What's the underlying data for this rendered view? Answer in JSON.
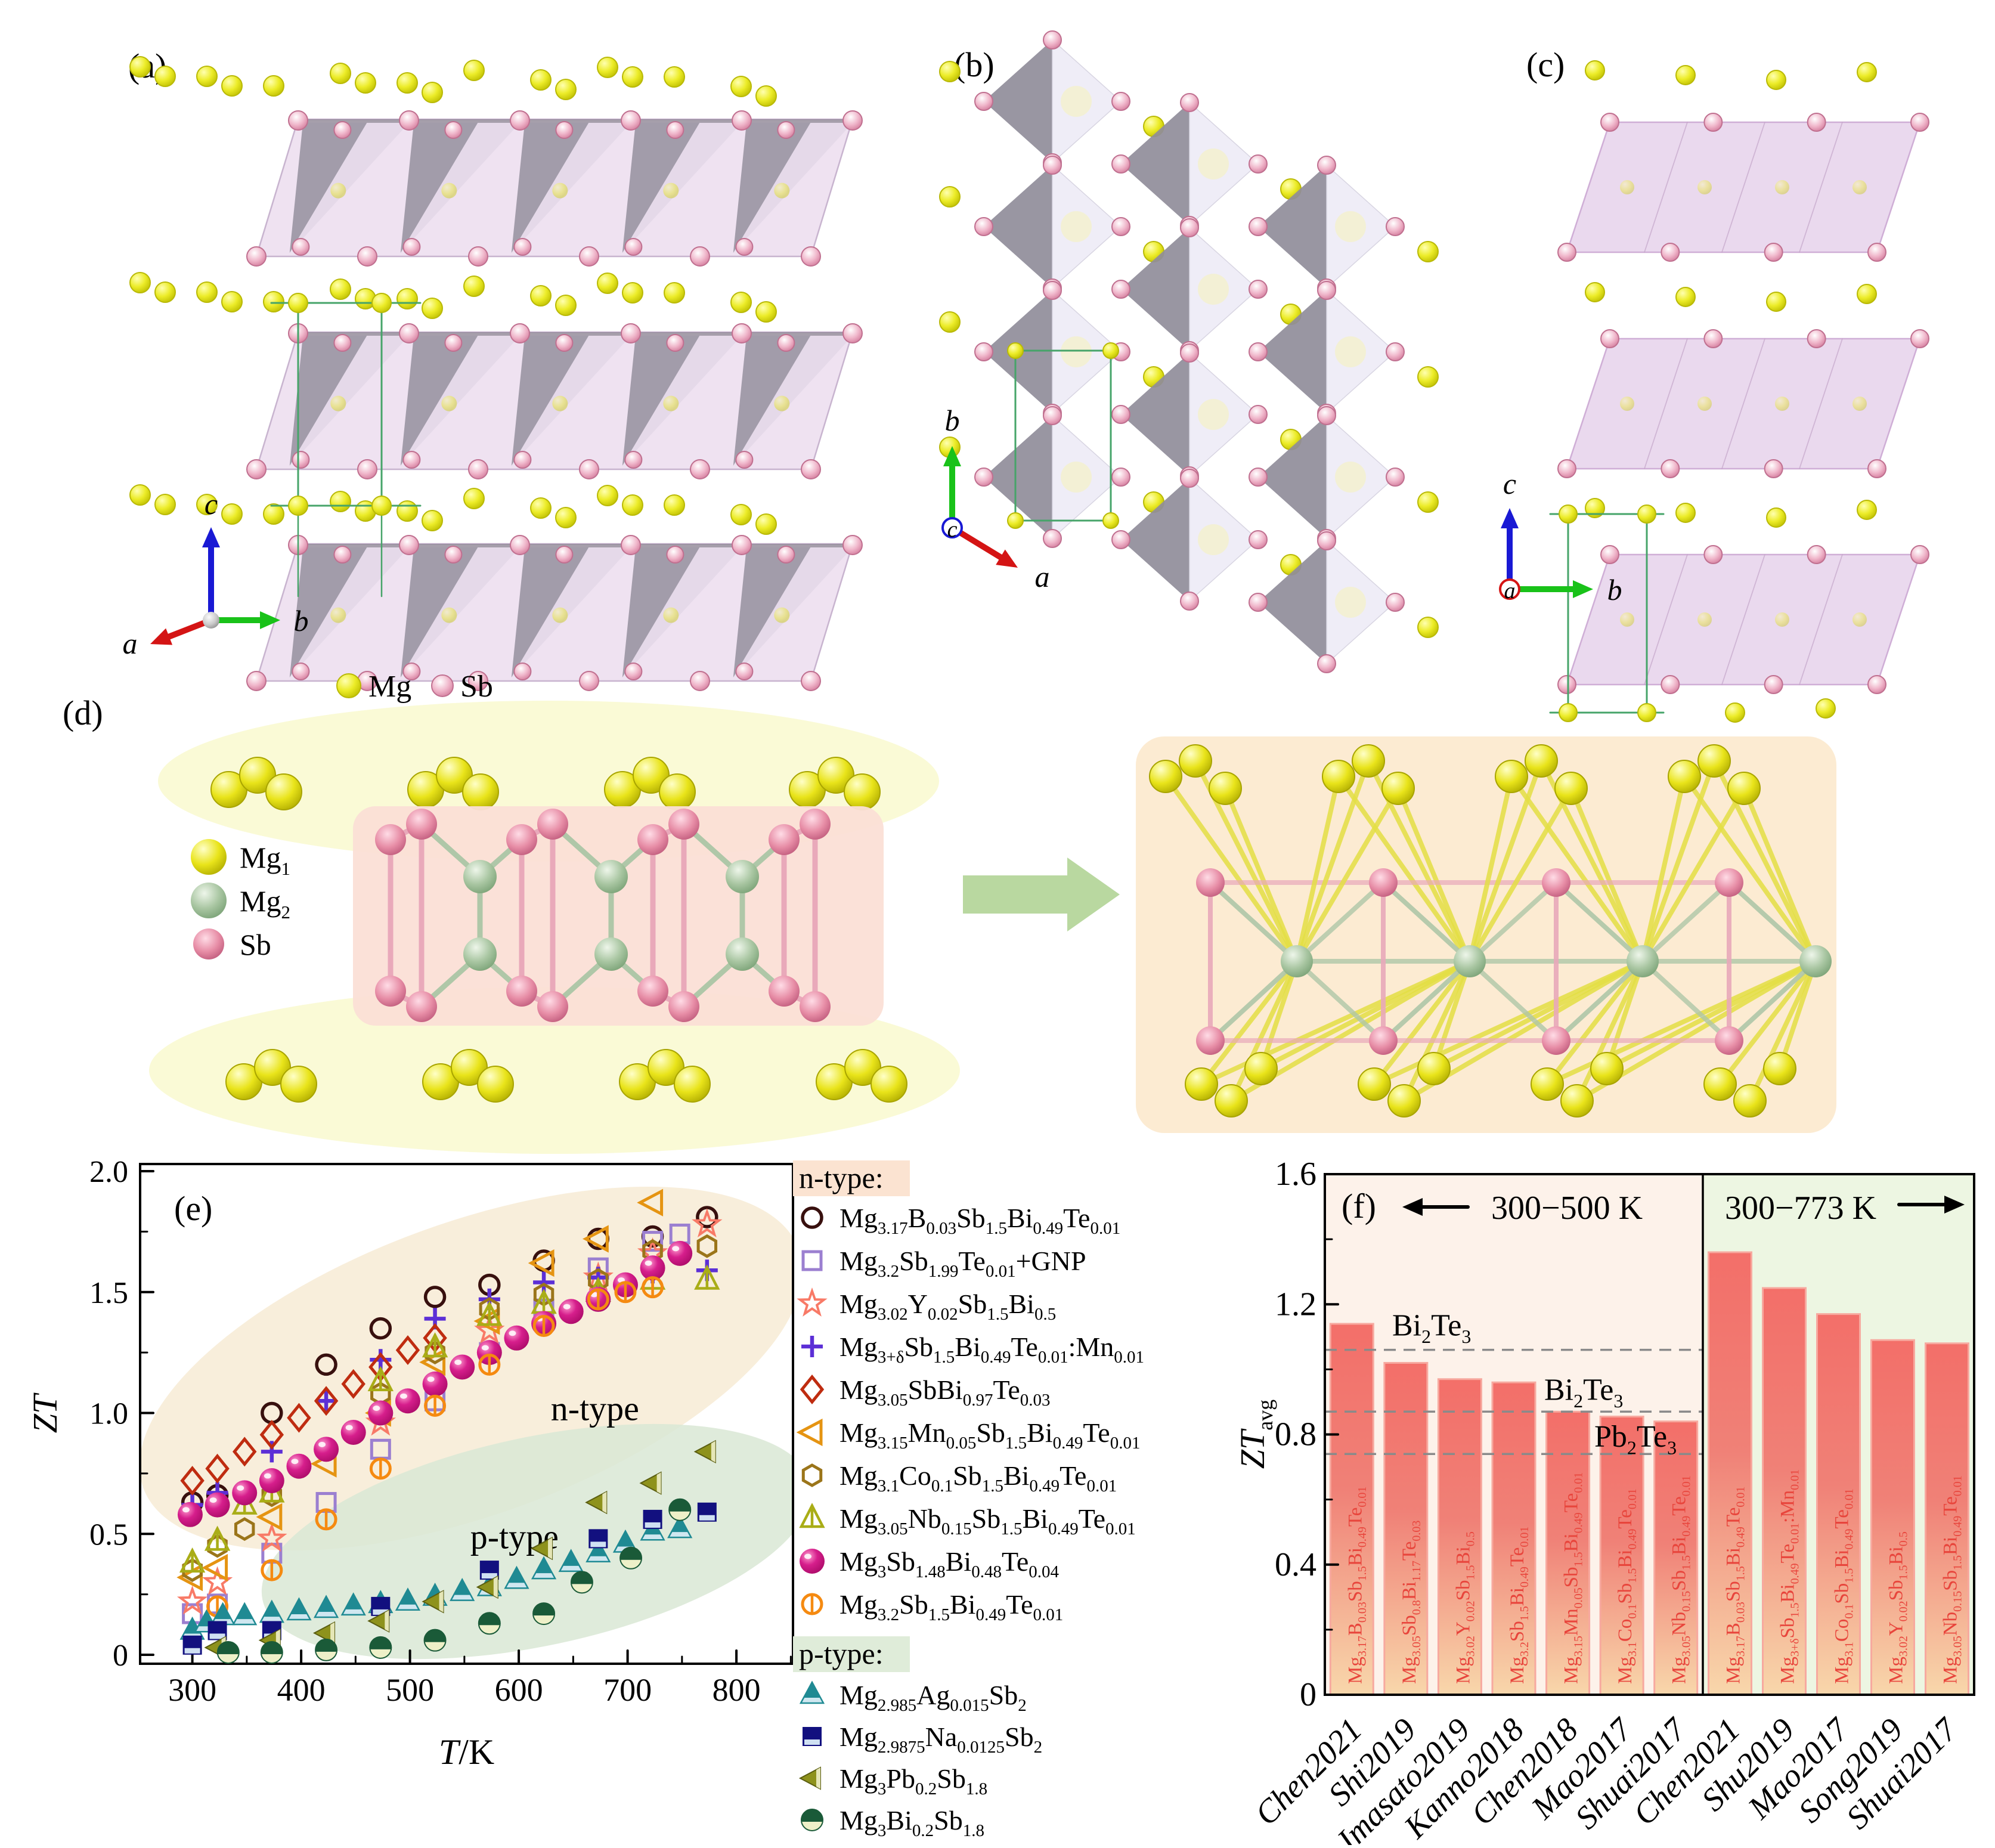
{
  "figure": {
    "panel_labels": {
      "a": "(a)",
      "b": "(b)",
      "c": "(c)",
      "d": "(d)",
      "e": "(e)",
      "f": "(f)"
    },
    "crystal_legend": {
      "mg": "Mg",
      "sb": "Sb"
    },
    "axis_triads": {
      "a": {
        "up": "c",
        "left": "a",
        "right": "b"
      },
      "b": {
        "up": "b",
        "diag": "a",
        "into_page": "c"
      },
      "c": {
        "up": "c",
        "right": "b",
        "into_page": "a"
      }
    },
    "d_legend": [
      {
        "label": "Mg_{1}",
        "color": "#e6e013"
      },
      {
        "label": "Mg_{2}",
        "color": "#a8c4a0"
      },
      {
        "label": "Sb",
        "color": "#e08ba4"
      }
    ],
    "palette": {
      "mg_yellow": "#ecec28",
      "sb_pink": "#eba6bd",
      "mg2_green": "#a9c6a2",
      "slab_pink": "#efe2f1",
      "slab_gray": "#8e8b98",
      "cell_green": "#46a469",
      "axis_a_red": "#d41414",
      "axis_b_green": "#19c219",
      "axis_c_blue": "#1919d4",
      "d_band_yellow": "#fafad2",
      "d_box_pink": "#fbdfd6",
      "d_box_orange": "#fcead0",
      "d_arrow_green": "#b9d8a0"
    }
  },
  "chart_data": [
    {
      "id": "e",
      "type": "scatter",
      "xlabel": "T/K",
      "ylabel": "ZT",
      "xlim": [
        252,
        852
      ],
      "ylim": [
        -0.04,
        2.02
      ],
      "xticks": [
        300,
        400,
        500,
        600,
        700,
        800
      ],
      "yticks": [
        {
          "v": 0,
          "t": "0"
        },
        {
          "v": 0.5,
          "t": "0.5"
        },
        {
          "v": 1.0,
          "t": "1.0"
        },
        {
          "v": 1.5,
          "t": "1.5"
        },
        {
          "v": 2.0,
          "t": "2.0"
        }
      ],
      "grid": false,
      "legend_position": "right",
      "annotations": [
        {
          "text": "n-type",
          "T": 670,
          "ZT": 0.97
        },
        {
          "text": "p-type",
          "T": 596,
          "ZT": 0.44
        }
      ],
      "legend_headers": [
        {
          "text": "n-type:",
          "bg": "#fbe3d1"
        },
        {
          "text": "p-type:",
          "bg": "#dfecd9"
        }
      ],
      "series": [
        {
          "group": "n",
          "name": "Mg_{3.17}B_{0.03}Sb_{1.5}Bi_{0.49}Te_{0.01}",
          "marker": "circle-open",
          "color": "#38100e",
          "data": [
            [
              300,
              0.63
            ],
            [
              323,
              0.66
            ],
            [
              373,
              1.0
            ],
            [
              423,
              1.2
            ],
            [
              473,
              1.35
            ],
            [
              523,
              1.48
            ],
            [
              573,
              1.53
            ],
            [
              623,
              1.63
            ],
            [
              673,
              1.72
            ],
            [
              723,
              1.73
            ],
            [
              773,
              1.81
            ]
          ]
        },
        {
          "group": "n",
          "name": "Mg_{3.2}Sb_{1.99}Te_{0.01}+GNP",
          "marker": "square-open",
          "color": "#9b7fd0",
          "data": [
            [
              300,
              0.17
            ],
            [
              323,
              0.21
            ],
            [
              373,
              0.42
            ],
            [
              423,
              0.63
            ],
            [
              473,
              0.85
            ],
            [
              523,
              1.05
            ],
            [
              573,
              1.25
            ],
            [
              623,
              1.43
            ],
            [
              673,
              1.6
            ],
            [
              723,
              1.71
            ],
            [
              748,
              1.74
            ]
          ]
        },
        {
          "group": "n",
          "name": "Mg_{3.02}Y_{0.02}Sb_{1.5}Bi_{0.5}",
          "marker": "star-open",
          "color": "#f87a67",
          "data": [
            [
              300,
              0.22
            ],
            [
              323,
              0.3
            ],
            [
              373,
              0.48
            ],
            [
              473,
              0.96
            ],
            [
              573,
              1.34
            ],
            [
              673,
              1.56
            ],
            [
              723,
              1.66
            ],
            [
              773,
              1.78
            ]
          ]
        },
        {
          "group": "n",
          "name": "Mg_{3+δ}Sb_{1.5}Bi_{0.49}Te_{0.01}:Mn_{0.01}",
          "marker": "plus",
          "color": "#5c2fd6",
          "data": [
            [
              300,
              0.62
            ],
            [
              323,
              0.67
            ],
            [
              373,
              0.84
            ],
            [
              423,
              1.05
            ],
            [
              473,
              1.22
            ],
            [
              523,
              1.39
            ],
            [
              573,
              1.47
            ],
            [
              623,
              1.54
            ],
            [
              673,
              1.56
            ],
            [
              723,
              1.58
            ],
            [
              773,
              1.59
            ]
          ]
        },
        {
          "group": "n",
          "name": "Mg_{3.05}SbBi_{0.97}Te_{0.03}",
          "marker": "diamond-open",
          "color": "#bf2c10",
          "data": [
            [
              300,
              0.72
            ],
            [
              323,
              0.77
            ],
            [
              348,
              0.84
            ],
            [
              373,
              0.91
            ],
            [
              398,
              0.98
            ],
            [
              423,
              1.05
            ],
            [
              448,
              1.12
            ],
            [
              473,
              1.19
            ],
            [
              498,
              1.26
            ],
            [
              523,
              1.31
            ]
          ]
        },
        {
          "group": "n",
          "name": "Mg_{3.15}Mn_{0.05}Sb_{1.5}Bi_{0.49}Te_{0.01}",
          "marker": "tri-left-open",
          "color": "#e59412",
          "data": [
            [
              300,
              0.32
            ],
            [
              323,
              0.36
            ],
            [
              373,
              0.57
            ],
            [
              423,
              0.79
            ],
            [
              473,
              1.0
            ],
            [
              523,
              1.21
            ],
            [
              573,
              1.38
            ],
            [
              623,
              1.62
            ],
            [
              673,
              1.72
            ],
            [
              723,
              1.87
            ]
          ]
        },
        {
          "group": "n",
          "name": "Mg_{3.1}Co_{0.1}Sb_{1.5}Bi_{0.49}Te_{0.01}",
          "marker": "hexagon-open",
          "color": "#9b751a",
          "data": [
            [
              300,
              0.35
            ],
            [
              323,
              0.45
            ],
            [
              348,
              0.52
            ],
            [
              373,
              0.66
            ],
            [
              473,
              1.08
            ],
            [
              523,
              1.25
            ],
            [
              573,
              1.43
            ],
            [
              623,
              1.49
            ],
            [
              673,
              1.55
            ],
            [
              723,
              1.67
            ],
            [
              773,
              1.69
            ]
          ]
        },
        {
          "group": "n",
          "name": "Mg_{3.05}Nb_{0.15}Sb_{1.5}Bi_{0.49}Te_{0.01}",
          "marker": "tri-up-line-open",
          "color": "#a9ad17",
          "data": [
            [
              300,
              0.38
            ],
            [
              323,
              0.47
            ],
            [
              348,
              0.62
            ],
            [
              373,
              0.67
            ],
            [
              473,
              1.13
            ],
            [
              523,
              1.27
            ],
            [
              573,
              1.4
            ],
            [
              623,
              1.45
            ],
            [
              673,
              1.5
            ],
            [
              723,
              1.55
            ],
            [
              773,
              1.55
            ]
          ]
        },
        {
          "group": "n",
          "name": "Mg_{3}Sb_{1.48}Bi_{0.48}Te_{0.04}",
          "marker": "sphere",
          "color": "#c4137b",
          "data": [
            [
              298,
              0.58
            ],
            [
              323,
              0.62
            ],
            [
              348,
              0.67
            ],
            [
              373,
              0.72
            ],
            [
              398,
              0.78
            ],
            [
              423,
              0.85
            ],
            [
              448,
              0.92
            ],
            [
              473,
              1.0
            ],
            [
              498,
              1.05
            ],
            [
              523,
              1.12
            ],
            [
              548,
              1.19
            ],
            [
              573,
              1.25
            ],
            [
              598,
              1.31
            ],
            [
              623,
              1.37
            ],
            [
              648,
              1.42
            ],
            [
              673,
              1.47
            ],
            [
              698,
              1.53
            ],
            [
              723,
              1.6
            ],
            [
              748,
              1.66
            ]
          ]
        },
        {
          "group": "n",
          "name": "Mg_{3.2}Sb_{1.5}Bi_{0.49}Te_{0.01}",
          "marker": "circle-vline-open",
          "color": "#f58a11",
          "data": [
            [
              323,
              0.2
            ],
            [
              373,
              0.35
            ],
            [
              423,
              0.56
            ],
            [
              473,
              0.77
            ],
            [
              523,
              1.03
            ],
            [
              573,
              1.2
            ],
            [
              623,
              1.36
            ],
            [
              673,
              1.47
            ],
            [
              698,
              1.5
            ],
            [
              723,
              1.52
            ]
          ]
        },
        {
          "group": "p",
          "name": "Mg_{2.985}Ag_{0.015}Sb_{2}",
          "marker": "tri-up-half",
          "color": "#1f8a93",
          "color2": "#cfe7f0",
          "data": [
            [
              300,
              0.1
            ],
            [
              313,
              0.13
            ],
            [
              328,
              0.16
            ],
            [
              348,
              0.16
            ],
            [
              373,
              0.17
            ],
            [
              398,
              0.18
            ],
            [
              423,
              0.19
            ],
            [
              448,
              0.2
            ],
            [
              473,
              0.21
            ],
            [
              498,
              0.22
            ],
            [
              523,
              0.24
            ],
            [
              548,
              0.26
            ],
            [
              573,
              0.28
            ],
            [
              598,
              0.31
            ],
            [
              623,
              0.35
            ],
            [
              648,
              0.38
            ],
            [
              673,
              0.42
            ],
            [
              698,
              0.46
            ],
            [
              723,
              0.51
            ],
            [
              748,
              0.52
            ]
          ]
        },
        {
          "group": "p",
          "name": "Mg_{2.9875}Na_{0.0125}Sb_{2}",
          "marker": "square-half",
          "color": "#12107f",
          "color2": "#cfe0f2",
          "data": [
            [
              300,
              0.04
            ],
            [
              323,
              0.1
            ],
            [
              373,
              0.1
            ],
            [
              473,
              0.2
            ],
            [
              573,
              0.35
            ],
            [
              673,
              0.48
            ],
            [
              723,
              0.56
            ],
            [
              773,
              0.59
            ]
          ]
        },
        {
          "group": "p",
          "name": "Mg_{3}Pb_{0.2}Sb_{1.8}",
          "marker": "tri-left-filled",
          "color": "#8e921c",
          "color2": "#eef0c8",
          "data": [
            [
              323,
              0.03
            ],
            [
              373,
              0.06
            ],
            [
              423,
              0.09
            ],
            [
              473,
              0.14
            ],
            [
              523,
              0.22
            ],
            [
              573,
              0.28
            ],
            [
              623,
              0.44
            ],
            [
              673,
              0.63
            ],
            [
              723,
              0.71
            ],
            [
              773,
              0.84
            ]
          ]
        },
        {
          "group": "p",
          "name": "Mg_{3}Bi_{0.2}Sb_{1.8}",
          "marker": "circle-half",
          "color": "#1a5a38",
          "color2": "#eef0c8",
          "data": [
            [
              333,
              0.01
            ],
            [
              373,
              0.01
            ],
            [
              423,
              0.02
            ],
            [
              473,
              0.03
            ],
            [
              523,
              0.06
            ],
            [
              573,
              0.13
            ],
            [
              623,
              0.17
            ],
            [
              658,
              0.3
            ],
            [
              703,
              0.4
            ],
            [
              748,
              0.6
            ]
          ]
        }
      ]
    },
    {
      "id": "f",
      "type": "bar",
      "ylabel": "ZT_{avg}",
      "ylim": [
        0,
        1.6
      ],
      "yticks": [
        {
          "v": 0,
          "t": "0"
        },
        {
          "v": 0.4,
          "t": "0.4"
        },
        {
          "v": 0.8,
          "t": "0.8"
        },
        {
          "v": 1.2,
          "t": "1.2"
        },
        {
          "v": 1.6,
          "t": "1.6"
        }
      ],
      "bar_gradient": [
        "#f36f69",
        "#f08177",
        "#f8d7ab"
      ],
      "bar_border": "#f7a99f",
      "bar_label_color": "#e8453c",
      "groups": [
        {
          "label": "300−500 K",
          "arrow": "left",
          "bg": "#fdf2ea",
          "bars": [
            {
              "author": "Chen2021",
              "formula": "Mg_{3.17}B_{0.03}Sb_{1.5}Bi_{0.49}Te_{0.01}",
              "value": 1.14
            },
            {
              "author": "Shi2019",
              "formula": "Mg_{3.05}Sb_{0.8}Bi_{1.17}Te_{0.03}",
              "value": 1.02
            },
            {
              "author": "Imasato2019",
              "formula": "Mg_{3.02}Y_{0.02}Sb_{1.5}Bi_{0.5}",
              "value": 0.97
            },
            {
              "author": "Kanno2018",
              "formula": "Mg_{3.2}Sb_{1.5}Bi_{0.49}Te_{0.01}",
              "value": 0.96
            },
            {
              "author": "Chen2018",
              "formula": "Mg_{3.15}Mn_{0.05}Sb_{1.5}Bi_{0.49}Te_{0.01}",
              "value": 0.87
            },
            {
              "author": "Mao2017",
              "formula": "Mg_{3.1}Co_{0.1}Sb_{1.5}Bi_{0.49}Te_{0.01}",
              "value": 0.855
            },
            {
              "author": "Shuai2017",
              "formula": "Mg_{3.05}Nb_{0.15}Sb_{1.5}Bi_{0.49}Te_{0.01}",
              "value": 0.84
            }
          ]
        },
        {
          "label": "300−773 K",
          "arrow": "right",
          "bg": "#edf6e2",
          "bars": [
            {
              "author": "Chen2021",
              "formula": "Mg_{3.17}B_{0.03}Sb_{1.5}Bi_{0.49}Te_{0.01}",
              "value": 1.36
            },
            {
              "author": "Shu2019",
              "formula": "Mg_{3+δ}Sb_{1.5}Bi_{0.49}Te_{0.01}:Mn_{0.01}",
              "value": 1.25
            },
            {
              "author": "Mao2017",
              "formula": "Mg_{3.1}Co_{0.1}Sb_{1.5}Bi_{0.49}Te_{0.01}",
              "value": 1.17
            },
            {
              "author": "Song2019",
              "formula": "Mg_{3.02}Y_{0.02}Sb_{1.5}Bi_{0.5}",
              "value": 1.09
            },
            {
              "author": "Shuai2017",
              "formula": "Mg_{3.05}Nb_{0.15}Sb_{1.5}Bi_{0.49}Te_{0.01}",
              "value": 1.08
            }
          ]
        }
      ],
      "ref_lines": [
        {
          "label": "Bi_{2}Te_{3}",
          "value": 1.06
        },
        {
          "label": "Bi_{2}Te_{3}",
          "value": 0.87
        },
        {
          "label": "Pb_{2}Te_{3}",
          "value": 0.74
        }
      ]
    }
  ]
}
